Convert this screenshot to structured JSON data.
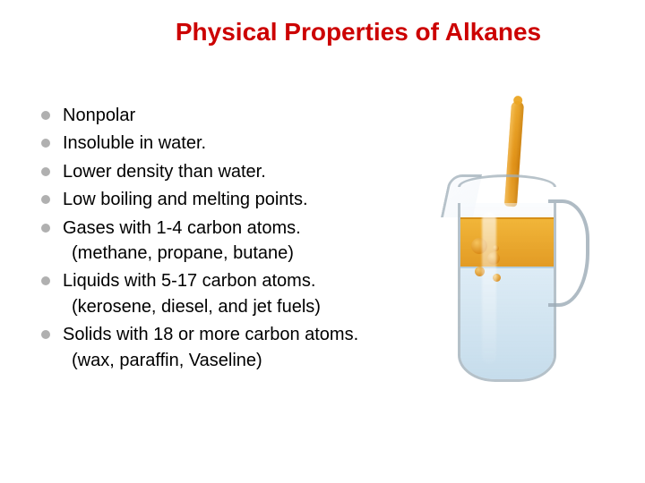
{
  "title": "Physical Properties of Alkanes",
  "title_color": "#cc0000",
  "title_fontsize": 28,
  "body_fontsize": 20,
  "body_color": "#000000",
  "bullet_marker_color": "#b0b0b0",
  "background_color": "#ffffff",
  "bullets": [
    {
      "text": "Nonpolar"
    },
    {
      "text": "Insoluble in water."
    },
    {
      "text": "Lower density than water."
    },
    {
      "text": "Low boiling and melting points."
    },
    {
      "text": "Gases with 1-4 carbon atoms.",
      "sub": "(methane, propane, butane)"
    },
    {
      "text": "Liquids with 5-17 carbon atoms.",
      "sub": "(kerosene, diesel, and jet fuels)"
    },
    {
      "text": "Solids with 18 or more carbon atoms.",
      "sub": "(wax, paraffin, Vaseline)"
    }
  ],
  "illustration": {
    "description": "Oil being poured into a glass pitcher of water; oil floats as an orange layer on top (demonstrating lower density and insolubility).",
    "oil_color": "#e59a1e",
    "oil_highlight": "#f7c763",
    "water_color": "#bfd8e9",
    "glass_outline": "#9fafba",
    "glass_fill": "#eef3f9"
  }
}
